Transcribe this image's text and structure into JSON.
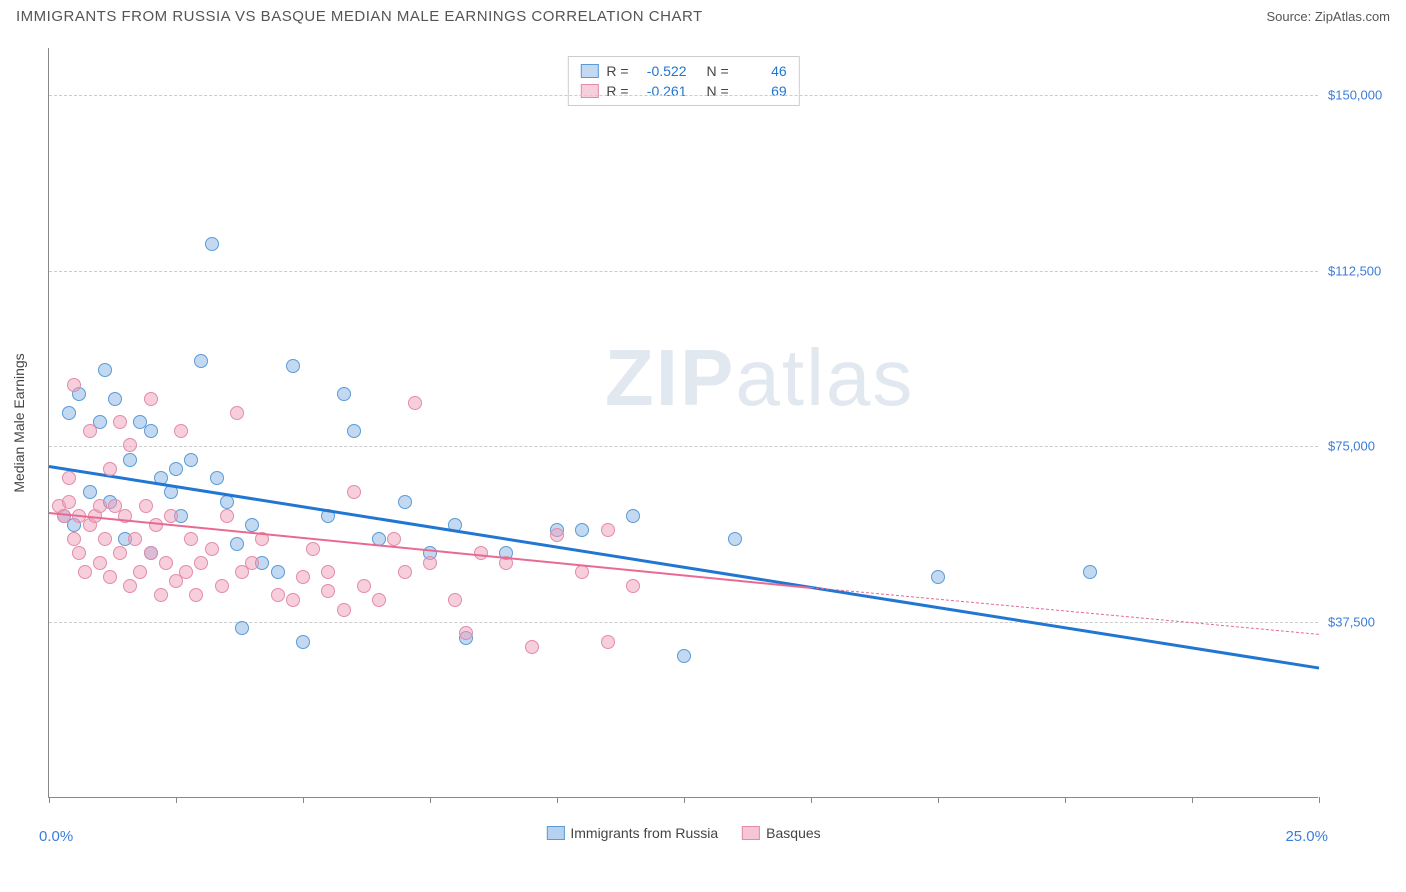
{
  "title": "IMMIGRANTS FROM RUSSIA VS BASQUE MEDIAN MALE EARNINGS CORRELATION CHART",
  "source": "Source: ZipAtlas.com",
  "watermark_a": "ZIP",
  "watermark_b": "atlas",
  "chart": {
    "type": "scatter",
    "y_axis_label": "Median Male Earnings",
    "x_min_label": "0.0%",
    "x_max_label": "25.0%",
    "xlim": [
      0,
      25
    ],
    "ylim": [
      0,
      160000
    ],
    "y_gridlines": [
      {
        "value": 37500,
        "label": "$37,500"
      },
      {
        "value": 75000,
        "label": "$75,000"
      },
      {
        "value": 112500,
        "label": "$112,500"
      },
      {
        "value": 150000,
        "label": "$150,000"
      }
    ],
    "x_tick_step": 2.5,
    "background_color": "#ffffff",
    "grid_color": "#cccccc",
    "axis_color": "#888888",
    "label_color": "#3b7dd8",
    "series": [
      {
        "name": "Immigrants from Russia",
        "color_fill": "rgba(135,180,230,0.5)",
        "color_stroke": "#5a9bd5",
        "trend_color": "#2176d2",
        "trend_width": 2.5,
        "R": "-0.522",
        "N": "46",
        "trend": {
          "x1": 0,
          "y1": 71000,
          "x2": 25,
          "y2": 28000
        },
        "points": [
          [
            0.3,
            60000
          ],
          [
            0.4,
            82000
          ],
          [
            0.5,
            58000
          ],
          [
            0.6,
            86000
          ],
          [
            0.8,
            65000
          ],
          [
            1.0,
            80000
          ],
          [
            1.1,
            91000
          ],
          [
            1.2,
            63000
          ],
          [
            1.3,
            85000
          ],
          [
            1.5,
            55000
          ],
          [
            1.6,
            72000
          ],
          [
            1.8,
            80000
          ],
          [
            2.0,
            78000
          ],
          [
            2.0,
            52000
          ],
          [
            2.2,
            68000
          ],
          [
            2.4,
            65000
          ],
          [
            2.5,
            70000
          ],
          [
            2.6,
            60000
          ],
          [
            2.8,
            72000
          ],
          [
            3.0,
            93000
          ],
          [
            3.2,
            118000
          ],
          [
            3.3,
            68000
          ],
          [
            3.5,
            63000
          ],
          [
            3.7,
            54000
          ],
          [
            3.8,
            36000
          ],
          [
            4.0,
            58000
          ],
          [
            4.2,
            50000
          ],
          [
            4.5,
            48000
          ],
          [
            4.8,
            92000
          ],
          [
            5.0,
            33000
          ],
          [
            5.5,
            60000
          ],
          [
            5.8,
            86000
          ],
          [
            6.0,
            78000
          ],
          [
            6.5,
            55000
          ],
          [
            7.0,
            63000
          ],
          [
            7.5,
            52000
          ],
          [
            8.0,
            58000
          ],
          [
            8.2,
            34000
          ],
          [
            9.0,
            52000
          ],
          [
            10.0,
            57000
          ],
          [
            10.5,
            57000
          ],
          [
            11.5,
            60000
          ],
          [
            12.5,
            30000
          ],
          [
            13.5,
            55000
          ],
          [
            17.5,
            47000
          ],
          [
            20.5,
            48000
          ]
        ]
      },
      {
        "name": "Basques",
        "color_fill": "rgba(240,160,185,0.5)",
        "color_stroke": "#e48ba8",
        "trend_color": "#e86a92",
        "trend_width": 2,
        "R": "-0.261",
        "N": "69",
        "trend": {
          "x1": 0,
          "y1": 61000,
          "x2": 15,
          "y2": 45000
        },
        "dashed_extension": {
          "x1": 15,
          "y1": 45000,
          "x2": 25,
          "y2": 35000
        },
        "points": [
          [
            0.2,
            62000
          ],
          [
            0.3,
            60000
          ],
          [
            0.4,
            63000
          ],
          [
            0.4,
            68000
          ],
          [
            0.5,
            55000
          ],
          [
            0.5,
            88000
          ],
          [
            0.6,
            60000
          ],
          [
            0.6,
            52000
          ],
          [
            0.7,
            48000
          ],
          [
            0.8,
            78000
          ],
          [
            0.8,
            58000
          ],
          [
            0.9,
            60000
          ],
          [
            1.0,
            50000
          ],
          [
            1.0,
            62000
          ],
          [
            1.1,
            55000
          ],
          [
            1.2,
            70000
          ],
          [
            1.2,
            47000
          ],
          [
            1.3,
            62000
          ],
          [
            1.4,
            80000
          ],
          [
            1.4,
            52000
          ],
          [
            1.5,
            60000
          ],
          [
            1.6,
            75000
          ],
          [
            1.6,
            45000
          ],
          [
            1.7,
            55000
          ],
          [
            1.8,
            48000
          ],
          [
            1.9,
            62000
          ],
          [
            2.0,
            85000
          ],
          [
            2.0,
            52000
          ],
          [
            2.1,
            58000
          ],
          [
            2.2,
            43000
          ],
          [
            2.3,
            50000
          ],
          [
            2.4,
            60000
          ],
          [
            2.5,
            46000
          ],
          [
            2.6,
            78000
          ],
          [
            2.7,
            48000
          ],
          [
            2.8,
            55000
          ],
          [
            2.9,
            43000
          ],
          [
            3.0,
            50000
          ],
          [
            3.2,
            53000
          ],
          [
            3.4,
            45000
          ],
          [
            3.5,
            60000
          ],
          [
            3.7,
            82000
          ],
          [
            3.8,
            48000
          ],
          [
            4.0,
            50000
          ],
          [
            4.2,
            55000
          ],
          [
            4.5,
            43000
          ],
          [
            4.8,
            42000
          ],
          [
            5.0,
            47000
          ],
          [
            5.2,
            53000
          ],
          [
            5.5,
            48000
          ],
          [
            5.5,
            44000
          ],
          [
            5.8,
            40000
          ],
          [
            6.0,
            65000
          ],
          [
            6.2,
            45000
          ],
          [
            6.5,
            42000
          ],
          [
            6.8,
            55000
          ],
          [
            7.0,
            48000
          ],
          [
            7.2,
            84000
          ],
          [
            7.5,
            50000
          ],
          [
            8.0,
            42000
          ],
          [
            8.2,
            35000
          ],
          [
            8.5,
            52000
          ],
          [
            9.0,
            50000
          ],
          [
            9.5,
            32000
          ],
          [
            10.0,
            56000
          ],
          [
            10.5,
            48000
          ],
          [
            11.0,
            57000
          ],
          [
            11.0,
            33000
          ],
          [
            11.5,
            45000
          ]
        ]
      }
    ]
  },
  "legend_bottom": [
    {
      "label": "Immigrants from Russia",
      "fill": "rgba(135,180,230,0.6)",
      "stroke": "#5a9bd5"
    },
    {
      "label": "Basques",
      "fill": "rgba(240,160,185,0.6)",
      "stroke": "#e48ba8"
    }
  ],
  "stats_labels": {
    "R": "R =",
    "N": "N ="
  }
}
